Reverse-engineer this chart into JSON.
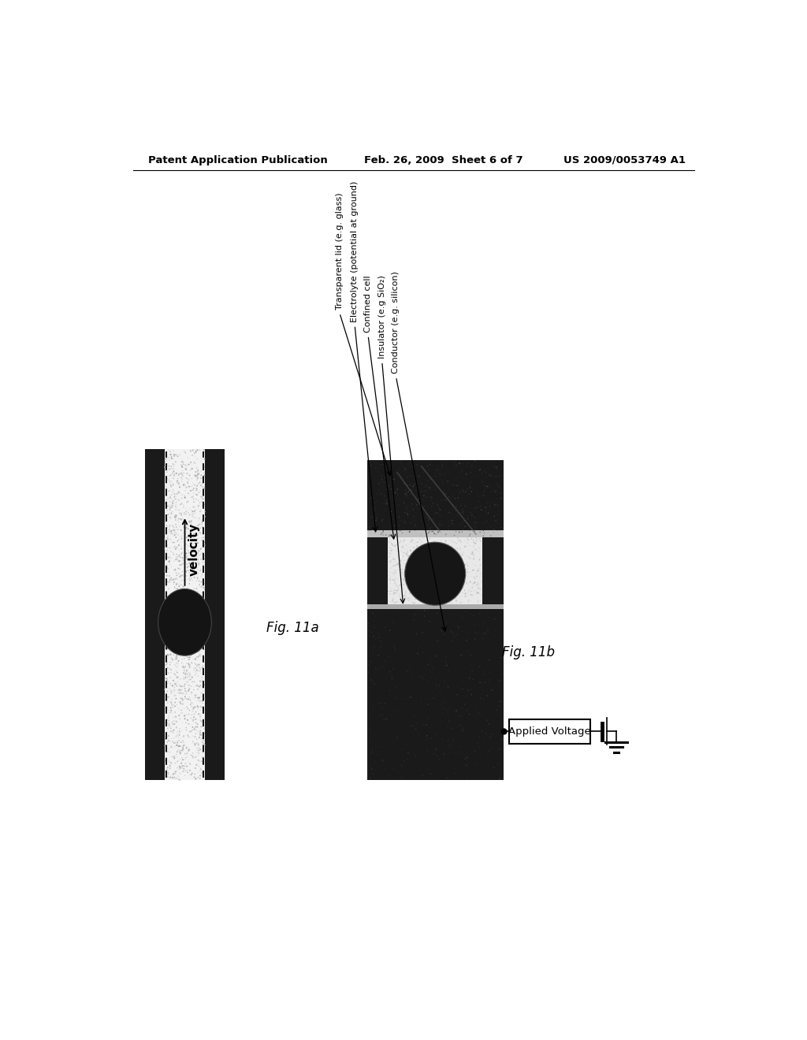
{
  "bg_color": "#ffffff",
  "header_left": "Patent Application Publication",
  "header_mid": "Feb. 26, 2009  Sheet 6 of 7",
  "header_right": "US 2009/0053749 A1",
  "fig_11a_label": "Fig. 11a",
  "fig_11b_label": "Fig. 11b",
  "velocity_label": "velocity",
  "label_transparent": "Transparent lid (e.g. glass)",
  "label_electrolyte": "Electrolyte (potential at ground)",
  "label_confined": "Confined cell",
  "label_insulator": "Insulator (e.g SiO₂)",
  "label_conductor": "Conductor (e.g. silicon)",
  "applied_voltage_label": "Applied Voltage",
  "dark_color": "#1a1a1a",
  "speckle_color": "#c8c8c8"
}
